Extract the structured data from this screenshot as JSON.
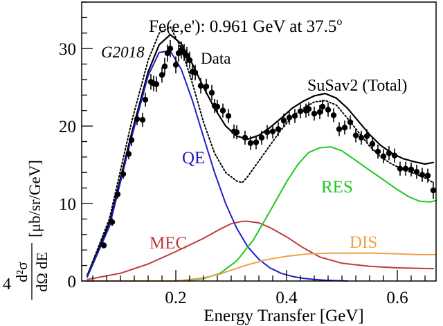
{
  "chart_data": {
    "type": "line",
    "title": "Fe(e,e'): 0.961 GeV at 37.5",
    "title_superscript": "o",
    "xlabel": "Energy Transfer [GeV]",
    "ylabel": "d²σ/dΩ dE [μb/sr/GeV]",
    "ylabel_parts": {
      "numerator": "d²σ",
      "denominator": "dΩ dE",
      "units": "[μb/sr/GeV]"
    },
    "stray_label": "4",
    "xlim": [
      0.03,
      0.67
    ],
    "ylim": [
      0,
      36
    ],
    "x_ticks": [
      0.2,
      0.4,
      0.6
    ],
    "x_tick_labels": [
      "0.2",
      "0.4",
      "0.6"
    ],
    "y_ticks": [
      0,
      10,
      20,
      30
    ],
    "y_tick_labels": [
      "0",
      "10",
      "20",
      "30"
    ],
    "grid": false,
    "legend_labels": {
      "g2018": "G2018",
      "data": "Data",
      "susav2": "SuSav2 (Total)"
    },
    "colors": {
      "total": "#000000",
      "g2018": "#000000",
      "data": "#000000",
      "QE": "#1e1ec8",
      "MEC": "#c0393b",
      "RES": "#1ec81e",
      "DIS": "#f0a04a"
    },
    "series": [
      {
        "name": "SuSav2 (Total)",
        "style": "solid",
        "key": "total",
        "x": [
          0.04,
          0.08,
          0.12,
          0.15,
          0.17,
          0.19,
          0.21,
          0.23,
          0.25,
          0.27,
          0.29,
          0.31,
          0.33,
          0.35,
          0.37,
          0.39,
          0.41,
          0.43,
          0.45,
          0.47,
          0.49,
          0.51,
          0.53,
          0.55,
          0.57,
          0.59,
          0.61,
          0.63,
          0.65,
          0.665
        ],
        "y": [
          0.7,
          7.5,
          19.0,
          27.0,
          30.5,
          31.8,
          30.6,
          28.0,
          25.0,
          22.3,
          20.0,
          18.7,
          18.3,
          18.8,
          19.8,
          21.0,
          22.3,
          23.2,
          23.9,
          24.2,
          23.6,
          22.3,
          20.6,
          18.9,
          17.5,
          16.5,
          15.8,
          15.4,
          15.1,
          15.3
        ]
      },
      {
        "name": "G2018",
        "style": "dotted",
        "key": "g2018",
        "x": [
          0.04,
          0.08,
          0.12,
          0.15,
          0.17,
          0.19,
          0.21,
          0.23,
          0.25,
          0.27,
          0.29,
          0.31,
          0.32,
          0.33,
          0.35,
          0.37,
          0.39,
          0.41,
          0.43,
          0.45,
          0.47,
          0.49,
          0.51,
          0.53,
          0.55,
          0.57,
          0.59,
          0.61,
          0.63,
          0.65,
          0.665
        ],
        "y": [
          0.7,
          8.0,
          20.5,
          28.5,
          32.0,
          32.8,
          30.0,
          25.5,
          20.5,
          16.5,
          14.0,
          12.9,
          12.7,
          13.5,
          15.5,
          17.5,
          19.5,
          21.2,
          22.3,
          23.1,
          23.3,
          22.7,
          21.0,
          19.2,
          17.4,
          16.0,
          15.1,
          14.4,
          13.9,
          13.3,
          12.7
        ]
      },
      {
        "name": "QE",
        "style": "solid",
        "key": "QE",
        "x": [
          0.04,
          0.08,
          0.12,
          0.15,
          0.17,
          0.19,
          0.21,
          0.23,
          0.25,
          0.27,
          0.29,
          0.31,
          0.33,
          0.35,
          0.37,
          0.39,
          0.41,
          0.43,
          0.45,
          0.47,
          0.49,
          0.51
        ],
        "y": [
          0.5,
          7.0,
          18.5,
          26.5,
          29.5,
          29.7,
          27.3,
          23.3,
          18.6,
          14.0,
          10.0,
          6.8,
          4.4,
          2.8,
          1.7,
          1.0,
          0.6,
          0.35,
          0.2,
          0.1,
          0.05,
          0.0
        ]
      },
      {
        "name": "MEC",
        "style": "solid",
        "key": "MEC",
        "x": [
          0.04,
          0.1,
          0.15,
          0.2,
          0.25,
          0.28,
          0.3,
          0.32,
          0.33,
          0.35,
          0.37,
          0.4,
          0.43,
          0.46,
          0.5,
          0.55,
          0.6,
          0.665
        ],
        "y": [
          0.2,
          1.0,
          2.2,
          3.8,
          5.5,
          6.7,
          7.4,
          7.7,
          7.7,
          7.5,
          6.9,
          5.7,
          4.3,
          3.1,
          2.3,
          1.9,
          1.7,
          1.6
        ]
      },
      {
        "name": "RES",
        "style": "solid",
        "key": "RES",
        "x": [
          0.04,
          0.2,
          0.25,
          0.28,
          0.31,
          0.34,
          0.37,
          0.4,
          0.42,
          0.44,
          0.46,
          0.48,
          0.5,
          0.52,
          0.54,
          0.56,
          0.58,
          0.6,
          0.62,
          0.64,
          0.66,
          0.67
        ],
        "y": [
          0.0,
          0.0,
          0.3,
          1.0,
          2.6,
          5.3,
          9.0,
          12.8,
          15.0,
          16.6,
          17.2,
          17.3,
          16.8,
          15.8,
          14.8,
          13.8,
          12.8,
          11.8,
          10.9,
          10.3,
          10.2,
          10.4
        ]
      },
      {
        "name": "DIS",
        "style": "solid",
        "key": "DIS",
        "x": [
          0.04,
          0.2,
          0.25,
          0.28,
          0.3,
          0.33,
          0.36,
          0.4,
          0.44,
          0.48,
          0.52,
          0.56,
          0.6,
          0.64,
          0.67
        ],
        "y": [
          0.0,
          0.0,
          0.4,
          0.9,
          1.4,
          2.1,
          2.7,
          3.2,
          3.5,
          3.6,
          3.6,
          3.6,
          3.5,
          3.4,
          3.4
        ]
      }
    ],
    "data_points": {
      "name": "Data",
      "x": [
        0.07,
        0.085,
        0.095,
        0.105,
        0.115,
        0.12,
        0.13,
        0.14,
        0.145,
        0.155,
        0.16,
        0.165,
        0.175,
        0.18,
        0.185,
        0.19,
        0.2,
        0.205,
        0.21,
        0.215,
        0.22,
        0.225,
        0.23,
        0.235,
        0.245,
        0.255,
        0.265,
        0.27,
        0.275,
        0.285,
        0.295,
        0.305,
        0.31,
        0.325,
        0.335,
        0.345,
        0.355,
        0.365,
        0.375,
        0.385,
        0.395,
        0.405,
        0.415,
        0.425,
        0.435,
        0.44,
        0.45,
        0.46,
        0.465,
        0.475,
        0.485,
        0.495,
        0.505,
        0.515,
        0.525,
        0.535,
        0.545,
        0.555,
        0.565,
        0.575,
        0.585,
        0.595,
        0.605,
        0.615,
        0.625,
        0.635,
        0.645,
        0.655,
        0.665
      ],
      "y": [
        4.6,
        7.6,
        11.2,
        13.8,
        16.4,
        18.2,
        20.9,
        20.8,
        23.4,
        25.7,
        25.5,
        25.4,
        26.6,
        27.7,
        29.4,
        30.0,
        27.9,
        29.4,
        29.8,
        29.5,
        29.1,
        28.5,
        27.0,
        26.9,
        25.2,
        25.1,
        24.3,
        22.6,
        22.5,
        22.0,
        21.3,
        19.3,
        19.2,
        18.5,
        17.8,
        17.9,
        18.5,
        19.2,
        19.3,
        19.6,
        20.7,
        21.1,
        21.3,
        21.9,
        22.0,
        22.2,
        21.6,
        21.8,
        22.5,
        22.1,
        21.4,
        19.6,
        19.8,
        20.5,
        18.8,
        18.5,
        18.7,
        17.7,
        16.7,
        16.1,
        16.5,
        16.2,
        14.5,
        14.5,
        14.4,
        14.1,
        13.7,
        13.6,
        11.7
      ],
      "yerr": [
        0.4,
        0.5,
        0.6,
        0.6,
        0.7,
        0.8,
        0.8,
        0.9,
        0.9,
        1.0,
        1.0,
        1.0,
        1.0,
        1.1,
        1.1,
        1.1,
        1.1,
        1.1,
        1.1,
        1.1,
        1.1,
        1.1,
        1.0,
        1.0,
        1.0,
        1.0,
        1.0,
        0.9,
        0.9,
        0.9,
        0.9,
        0.9,
        0.9,
        0.9,
        0.9,
        0.9,
        0.9,
        0.9,
        0.9,
        0.9,
        0.9,
        0.9,
        0.9,
        0.9,
        0.9,
        0.9,
        0.9,
        0.9,
        0.9,
        0.9,
        0.9,
        0.9,
        0.9,
        0.9,
        0.9,
        0.9,
        0.9,
        0.9,
        0.9,
        0.9,
        0.9,
        0.9,
        0.9,
        0.9,
        0.9,
        0.9,
        0.9,
        0.9,
        1.1
      ]
    },
    "annotations": {
      "QE": "QE",
      "MEC": "MEC",
      "RES": "RES",
      "DIS": "DIS"
    }
  }
}
